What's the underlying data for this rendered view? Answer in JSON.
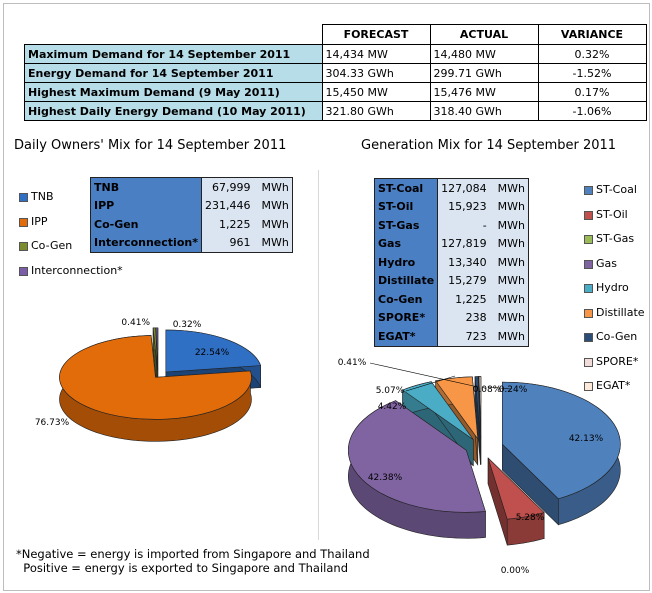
{
  "demand_table": {
    "headers": [
      "",
      "FORECAST",
      "ACTUAL",
      "VARIANCE"
    ],
    "rows": [
      {
        "label": "Maximum Demand for 14 September 2011",
        "forecast": "14,434  MW",
        "actual": "14,480  MW",
        "variance": "0.32%"
      },
      {
        "label": "Energy Demand for 14 September 2011",
        "forecast": "304.33  GWh",
        "actual": "299.71  GWh",
        "variance": "-1.52%"
      },
      {
        "label": "Highest Maximum Demand (9 May 2011)",
        "forecast": "15,450  MW",
        "actual": "15,476  MW",
        "variance": "0.17%"
      },
      {
        "label": "Highest Daily Energy Demand (10 May 2011)",
        "forecast": "321.80  GWh",
        "actual": "318.40  GWh",
        "variance": "-1.06%"
      }
    ]
  },
  "owners": {
    "title": "Daily Owners' Mix for 14 September 2011",
    "legend": [
      {
        "label": "TNB",
        "color": "#2f6fc4"
      },
      {
        "label": "IPP",
        "color": "#e26b0a"
      },
      {
        "label": "Co-Gen",
        "color": "#7a8c2e"
      },
      {
        "label": "Interconnection*",
        "color": "#7b5ea7"
      }
    ],
    "table": [
      {
        "name": "TNB",
        "value": "67,999",
        "unit": "MWh"
      },
      {
        "name": "IPP",
        "value": "231,446",
        "unit": "MWh"
      },
      {
        "name": "Co-Gen",
        "value": "1,225",
        "unit": "MWh"
      },
      {
        "name": "Interconnection*",
        "value": "961",
        "unit": "MWh"
      }
    ]
  },
  "generation": {
    "title": "Generation Mix for 14 September 2011",
    "legend": [
      {
        "label": "ST-Coal",
        "color": "#4f81bd"
      },
      {
        "label": "ST-Oil",
        "color": "#c0504d"
      },
      {
        "label": "ST-Gas",
        "color": "#9bbb59"
      },
      {
        "label": "Gas",
        "color": "#8064a2"
      },
      {
        "label": "Hydro",
        "color": "#4bacc6"
      },
      {
        "label": "Distillate",
        "color": "#f79646"
      },
      {
        "label": "Co-Gen",
        "color": "#2c4d75"
      },
      {
        "label": "SPORE*",
        "color": "#f2dcdb"
      },
      {
        "label": "EGAT*",
        "color": "#fde9d9"
      }
    ],
    "table": [
      {
        "name": "ST-Coal",
        "value": "127,084",
        "unit": "MWh"
      },
      {
        "name": "ST-Oil",
        "value": "15,923",
        "unit": "MWh"
      },
      {
        "name": "ST-Gas",
        "value": "-",
        "unit": "MWh"
      },
      {
        "name": "Gas",
        "value": "127,819",
        "unit": "MWh"
      },
      {
        "name": "Hydro",
        "value": "13,340",
        "unit": "MWh"
      },
      {
        "name": "Distillate",
        "value": "15,279",
        "unit": "MWh"
      },
      {
        "name": "Co-Gen",
        "value": "1,225",
        "unit": "MWh"
      },
      {
        "name": "SPORE*",
        "value": "238",
        "unit": "MWh"
      },
      {
        "name": "EGAT*",
        "value": "723",
        "unit": "MWh"
      }
    ]
  },
  "footnote": "*Negative = energy is imported from Singapore and Thailand\n  Positive = energy is exported to Singapore and Thailand",
  "chart_data": [
    {
      "type": "pie",
      "title": "Daily Owners' Mix for 14 September 2011",
      "categories": [
        "TNB",
        "IPP",
        "Co-Gen",
        "Interconnection*"
      ],
      "values": [
        22.54,
        76.73,
        0.41,
        0.32
      ],
      "labels": [
        "22.54%",
        "76.73%",
        "0.41%",
        "0.32%"
      ],
      "colors": [
        "#2f6fc4",
        "#e26b0a",
        "#7a8c2e",
        "#7b5ea7"
      ],
      "start_angle": -90,
      "three_d": true,
      "exploded": true
    },
    {
      "type": "pie",
      "title": "Generation Mix for 14 September 2011",
      "categories": [
        "ST-Coal",
        "ST-Oil",
        "ST-Gas",
        "Gas",
        "Hydro",
        "Distillate",
        "Co-Gen",
        "SPORE*",
        "EGAT*"
      ],
      "values": [
        42.13,
        5.28,
        0.0,
        42.38,
        4.42,
        5.07,
        0.41,
        0.08,
        0.24
      ],
      "labels": [
        "42.13%",
        "5.28%",
        "0.00%",
        "42.38%",
        "4.42%",
        "5.07%",
        "0.41%",
        "0.08%",
        "0.24%"
      ],
      "colors": [
        "#4f81bd",
        "#c0504d",
        "#9bbb59",
        "#8064a2",
        "#4bacc6",
        "#f79646",
        "#2c4d75",
        "#f2dcdb",
        "#fde9d9"
      ],
      "start_angle": -90,
      "three_d": true,
      "exploded": true
    }
  ]
}
